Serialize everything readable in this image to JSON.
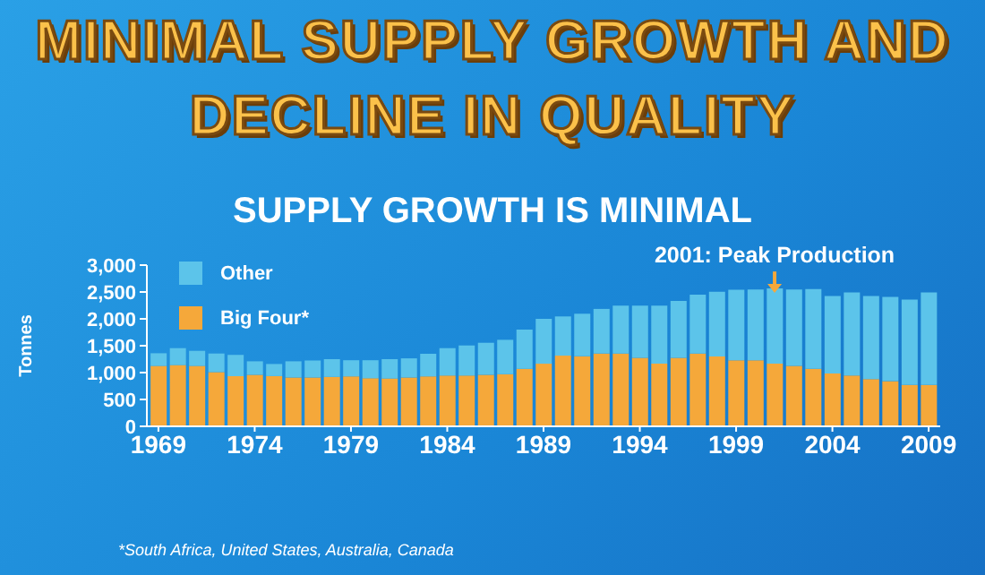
{
  "chart_data": {
    "type": "bar",
    "title": "MINIMAL SUPPLY GROWTH AND DECLINE IN QUALITY",
    "subtitle": "SUPPLY GROWTH IS MINIMAL",
    "ylabel": "Tonnes",
    "x": [
      1969,
      1970,
      1971,
      1972,
      1973,
      1974,
      1975,
      1976,
      1977,
      1978,
      1979,
      1980,
      1981,
      1982,
      1983,
      1984,
      1985,
      1986,
      1987,
      1988,
      1989,
      1990,
      1991,
      1992,
      1993,
      1994,
      1995,
      1996,
      1997,
      1998,
      1999,
      2000,
      2001,
      2002,
      2003,
      2004,
      2005,
      2006,
      2007,
      2008,
      2009
    ],
    "xlim": [
      1968.4,
      2009.6
    ],
    "xticks": [
      1969,
      1974,
      1979,
      1984,
      1989,
      1994,
      1999,
      2004,
      2009
    ],
    "ylim": [
      0,
      3000
    ],
    "yticks": [
      0,
      500,
      {
        "value": 1000,
        "label": "1,000"
      },
      {
        "value": 1500,
        "label": "1,500"
      },
      {
        "value": 2000,
        "label": "2,000"
      },
      {
        "value": 2500,
        "label": "2,500"
      },
      {
        "value": 3000,
        "label": "3,000"
      }
    ],
    "stacked": true,
    "legend": "top left",
    "series": [
      {
        "name": "Big Four*",
        "color": "#f5a83a",
        "values": [
          1125,
          1140,
          1125,
          1010,
          935,
          960,
          935,
          910,
          910,
          920,
          930,
          895,
          890,
          910,
          930,
          945,
          945,
          960,
          970,
          1070,
          1165,
          1315,
          1305,
          1355,
          1355,
          1275,
          1165,
          1275,
          1355,
          1300,
          1230,
          1230,
          1165,
          1125,
          1070,
          985,
          945,
          880,
          840,
          770,
          770
        ]
      },
      {
        "name": "Other",
        "color": "#5cc4ea",
        "values": [
          235,
          315,
          280,
          345,
          395,
          250,
          225,
          300,
          315,
          330,
          300,
          335,
          360,
          355,
          420,
          510,
          560,
          595,
          640,
          730,
          835,
          730,
          790,
          830,
          890,
          970,
          1080,
          1060,
          1095,
          1205,
          1310,
          1315,
          1400,
          1420,
          1485,
          1440,
          1545,
          1545,
          1570,
          1590,
          1720
        ]
      }
    ],
    "annotations": [
      {
        "text": "2001: Peak Production",
        "x": 2001,
        "y": 2565
      },
      "*South Africa, United States, Australia, Canada"
    ]
  }
}
